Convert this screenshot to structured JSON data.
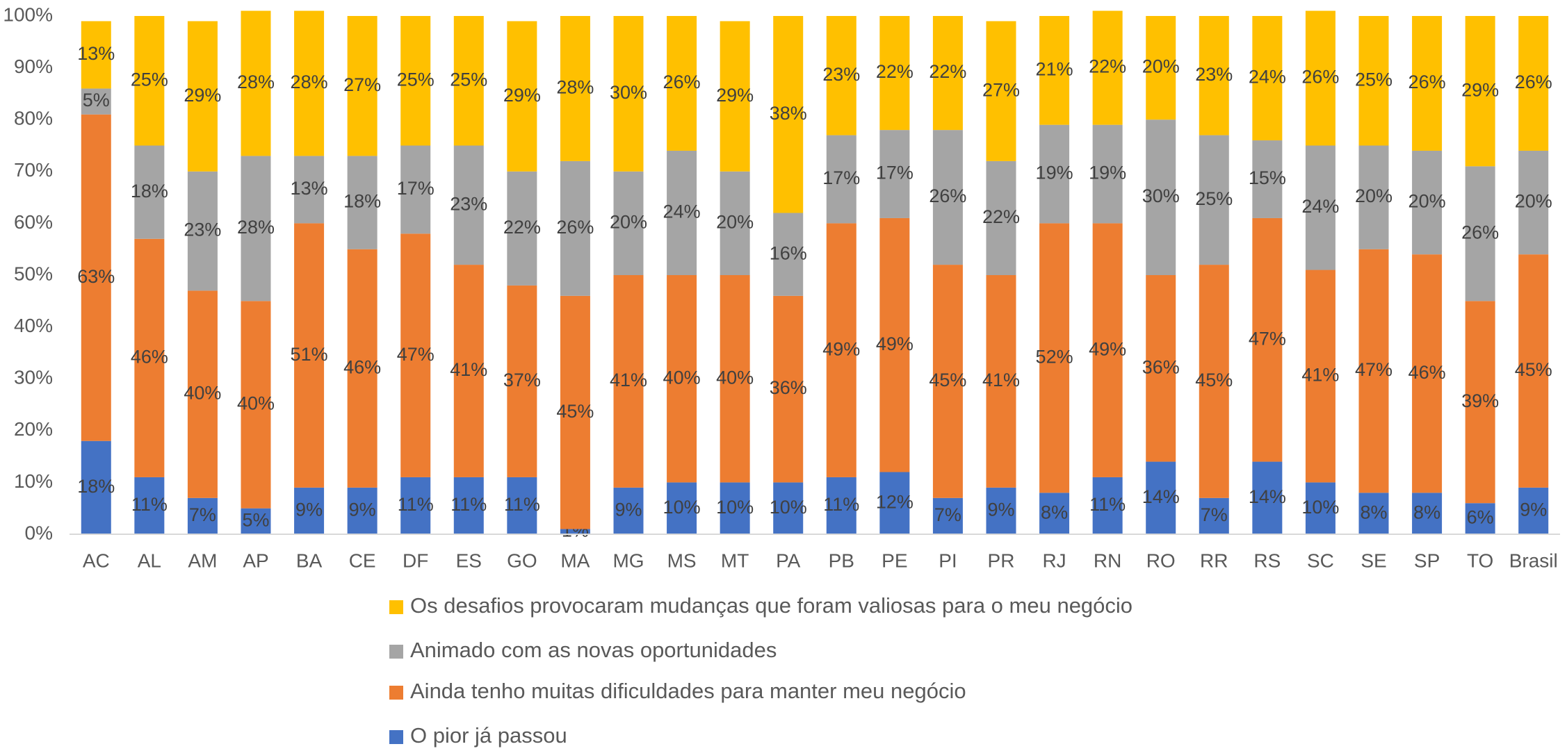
{
  "chart_data": {
    "type": "stacked_bar",
    "categories": [
      "AC",
      "AL",
      "AM",
      "AP",
      "BA",
      "CE",
      "DF",
      "ES",
      "GO",
      "MA",
      "MG",
      "MS",
      "MT",
      "PA",
      "PB",
      "PE",
      "PI",
      "PR",
      "RJ",
      "RN",
      "RO",
      "RR",
      "RS",
      "SC",
      "SE",
      "SP",
      "TO",
      "Brasil"
    ],
    "series": [
      {
        "name": "O pior já passou",
        "color": "#4472C4",
        "values": [
          18,
          11,
          7,
          5,
          9,
          9,
          11,
          11,
          11,
          1,
          9,
          10,
          10,
          10,
          11,
          12,
          7,
          9,
          8,
          11,
          14,
          7,
          14,
          10,
          8,
          8,
          6,
          9
        ],
        "value_labels": [
          "18%",
          "11%",
          "7%",
          "5%",
          "9%",
          "9%",
          "11%",
          "11%",
          "11%",
          "1%",
          "9%",
          "10%",
          "10%",
          "10%",
          "11%",
          "12%",
          "7%",
          "9%",
          "8%",
          "11%",
          "14%",
          "7%",
          "14%",
          "10%",
          "8%",
          "8%",
          "6%",
          "9%"
        ]
      },
      {
        "name": "Ainda tenho muitas dificuldades para manter meu negócio",
        "color": "#ED7D31",
        "values": [
          63,
          46,
          40,
          40,
          51,
          46,
          47,
          41,
          37,
          45,
          41,
          40,
          40,
          36,
          49,
          49,
          45,
          41,
          52,
          49,
          36,
          45,
          47,
          41,
          47,
          46,
          39,
          45
        ],
        "value_labels": [
          "63%",
          "46%",
          "40%",
          "40%",
          "51%",
          "46%",
          "47%",
          "41%",
          "37%",
          "45%",
          "41%",
          "40%",
          "40%",
          "36%",
          "49%",
          "49%",
          "45%",
          "41%",
          "52%",
          "49%",
          "36%",
          "45%",
          "47%",
          "41%",
          "47%",
          "46%",
          "39%",
          "45%"
        ]
      },
      {
        "name": "Animado com as novas oportunidades",
        "color": "#A5A5A5",
        "values": [
          5,
          18,
          23,
          28,
          13,
          18,
          17,
          23,
          22,
          26,
          20,
          24,
          20,
          16,
          17,
          17,
          26,
          22,
          19,
          19,
          30,
          25,
          15,
          24,
          20,
          20,
          26,
          20
        ],
        "value_labels": [
          "5%",
          "18%",
          "23%",
          "28%",
          "13%",
          "18%",
          "17%",
          "23%",
          "22%",
          "26%",
          "20%",
          "24%",
          "20%",
          "16%",
          "17%",
          "17%",
          "26%",
          "22%",
          "19%",
          "19%",
          "30%",
          "25%",
          "15%",
          "24%",
          "20%",
          "20%",
          "26%",
          "20%"
        ]
      },
      {
        "name": "Os desafios provocaram mudanças que foram valiosas para o meu negócio",
        "color": "#FFC000",
        "values": [
          13,
          25,
          29,
          28,
          28,
          27,
          25,
          25,
          29,
          28,
          30,
          26,
          29,
          38,
          23,
          22,
          22,
          27,
          21,
          22,
          20,
          23,
          24,
          26,
          25,
          26,
          29,
          26
        ],
        "value_labels": [
          "13%",
          "25%",
          "29%",
          "28%",
          "28%",
          "27%",
          "25%",
          "25%",
          "29%",
          "28%",
          "30%",
          "26%",
          "29%",
          "38%",
          "23%",
          "22%",
          "22%",
          "27%",
          "21%",
          "22%",
          "20%",
          "23%",
          "24%",
          "26%",
          "25%",
          "26%",
          "29%",
          "26%"
        ]
      }
    ],
    "ylim": [
      0,
      100
    ],
    "yticks": [
      {
        "value": 0,
        "label": "0%"
      },
      {
        "value": 10,
        "label": "10%"
      },
      {
        "value": 20,
        "label": "20%"
      },
      {
        "value": 30,
        "label": "30%"
      },
      {
        "value": 40,
        "label": "40%"
      },
      {
        "value": 50,
        "label": "50%"
      },
      {
        "value": 60,
        "label": "60%"
      },
      {
        "value": 70,
        "label": "70%"
      },
      {
        "value": 80,
        "label": "80%"
      },
      {
        "value": 90,
        "label": "90%"
      },
      {
        "value": 100,
        "label": "100%"
      }
    ],
    "legend": "bottom"
  }
}
